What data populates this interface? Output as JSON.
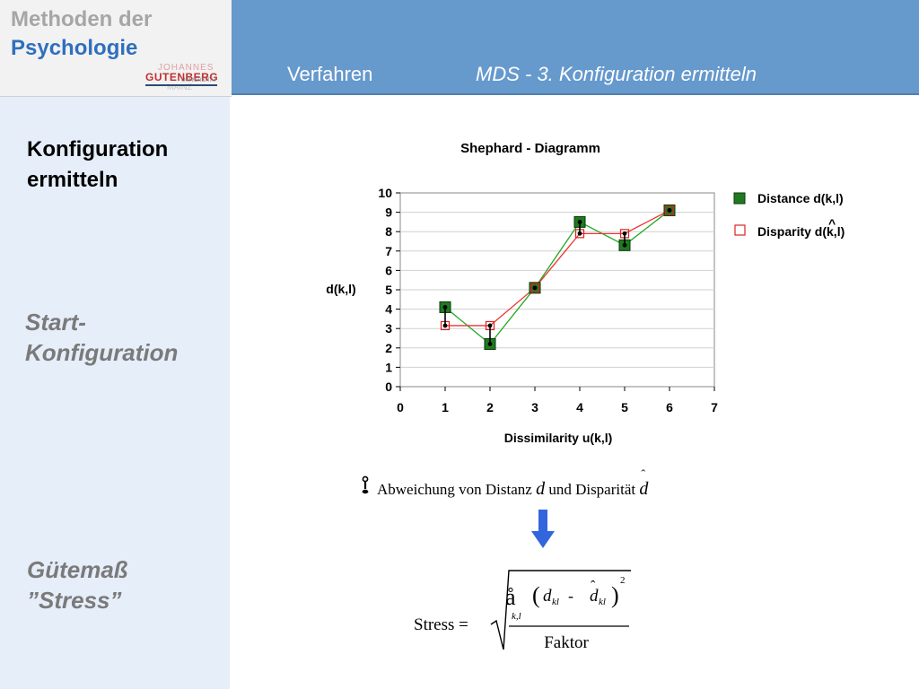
{
  "logo": {
    "line1": "Methoden der",
    "line2": "Psychologie",
    "uni_top": "JOHANNES",
    "uni_main": "GUTENBERG",
    "uni_sub": "UNIVERSITÄT",
    "uni_city": "MAINZ"
  },
  "header": {
    "section": "Verfahren",
    "topic": "MDS  -  3. Konfiguration ermitteln"
  },
  "sidebar": {
    "heading_line1": "Konfiguration",
    "heading_line2": "ermitteln",
    "start_line1": "Start-",
    "start_line2": "Konfiguration",
    "guete_line1": "Gütemaß",
    "guete_line2": "”Stress”"
  },
  "chart_data": {
    "type": "scatter",
    "title": "Shephard - Diagramm",
    "xlabel": "Dissimilarity u(k,l)",
    "ylabel": "d(k,l)",
    "xlim": [
      0,
      7
    ],
    "ylim": [
      0,
      10
    ],
    "x_ticks": [
      0,
      1,
      2,
      3,
      4,
      5,
      6,
      7
    ],
    "y_ticks": [
      0,
      1,
      2,
      3,
      4,
      5,
      6,
      7,
      8,
      9,
      10
    ],
    "grid": "horizontal",
    "legend_position": "right",
    "series": [
      {
        "name": "Distance d(k,l)",
        "marker": "filled-square",
        "color": "#1f7a1f",
        "line_color": "#22aa22",
        "x": [
          1,
          2,
          3,
          4,
          5,
          6
        ],
        "y": [
          4.1,
          2.2,
          5.1,
          8.5,
          7.3,
          9.1
        ]
      },
      {
        "name": "Disparity d(k,l)",
        "marker": "open-square",
        "color": "#dd2222",
        "line_color": "#ee3333",
        "x": [
          1,
          2,
          3,
          4,
          5,
          6
        ],
        "y": [
          3.15,
          3.15,
          5.1,
          7.9,
          7.9,
          9.1
        ]
      }
    ]
  },
  "bullet": {
    "text_before": "Abweichung von Distanz ",
    "var_d": "d",
    "text_middle": " und Disparität ",
    "var_dhat": "d",
    "hat": "ˆ"
  },
  "formula": {
    "lhs": "Stress =",
    "sum_symbol": "å",
    "sum_index": "k,l",
    "d": "d",
    "kl": "kl",
    "minus": "-",
    "hat": "ˆ",
    "exponent": "2",
    "lparen": "(",
    "rparen": ")",
    "denominator": "Faktor"
  },
  "colors": {
    "header": "#6699cc",
    "sidebar": "#e6eefa",
    "arrow": "#3366dd"
  }
}
